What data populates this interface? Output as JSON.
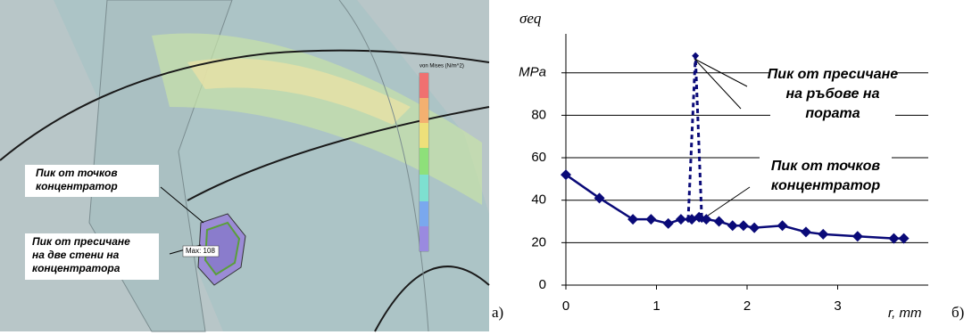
{
  "panel_a": {
    "panel_label": "a)",
    "legend_title": "von Mises (N/m^2)",
    "max_label": "Max: 108",
    "labels": [
      [
        "Пик от точков",
        "концентратор"
      ],
      [
        "Пик от пресичане",
        "на две стени на",
        "концентратора"
      ]
    ]
  },
  "chart_data": {
    "type": "line",
    "panel_label": "б)",
    "ylabel": "σeq",
    "xlabel": "r, mm",
    "xlim": [
      0,
      4
    ],
    "ylim": [
      0,
      115
    ],
    "xticks": [
      0,
      1,
      2,
      3
    ],
    "yticks": [
      0,
      20,
      40,
      60,
      80,
      {
        "value": 100,
        "label": "MPa"
      }
    ],
    "grid": true,
    "series": [
      {
        "color": "#0a0a78",
        "style": "solid",
        "x": [
          0,
          0.37,
          0.74,
          0.94,
          1.13,
          1.27,
          1.39,
          1.47,
          1.55,
          1.69,
          1.84,
          1.96,
          2.08,
          2.39,
          2.65,
          2.84,
          3.22,
          3.62,
          3.73
        ],
        "values": [
          52,
          41,
          31,
          31,
          29,
          31,
          31,
          32,
          31,
          30,
          28,
          28,
          27,
          28,
          25,
          24,
          23,
          22,
          22
        ]
      },
      {
        "color": "#0a0a78",
        "style": "dotted",
        "x": [
          1.35,
          1.43,
          1.5
        ],
        "values": [
          31,
          108,
          31
        ]
      }
    ],
    "annotations": [
      [
        "Пик от пресичане",
        "на ръбове на",
        "пората"
      ],
      [
        "Пик от точков",
        "концентратор"
      ]
    ]
  }
}
